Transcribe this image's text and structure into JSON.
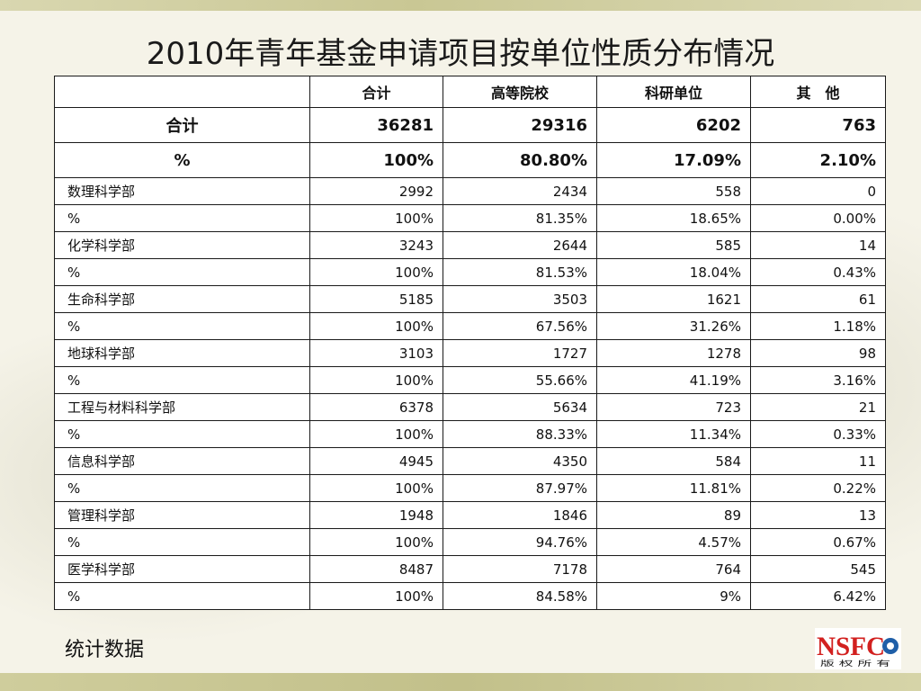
{
  "title": "2010年青年基金申请项目按单位性质分布情况",
  "table": {
    "headers": [
      "",
      "合计",
      "高等院校",
      "科研单位",
      "其　他"
    ],
    "summary_rows": [
      [
        "合计",
        "36281",
        "29316",
        "6202",
        "763"
      ],
      [
        "%",
        "100%",
        "80.80%",
        "17.09%",
        "2.10%"
      ]
    ],
    "rows": [
      [
        "数理科学部",
        "2992",
        "2434",
        "558",
        "0"
      ],
      [
        "%",
        "100%",
        "81.35%",
        "18.65%",
        "0.00%"
      ],
      [
        "化学科学部",
        "3243",
        "2644",
        "585",
        "14"
      ],
      [
        "%",
        "100%",
        "81.53%",
        "18.04%",
        "0.43%"
      ],
      [
        "生命科学部",
        "5185",
        "3503",
        "1621",
        "61"
      ],
      [
        "%",
        "100%",
        "67.56%",
        "31.26%",
        "1.18%"
      ],
      [
        "地球科学部",
        "3103",
        "1727",
        "1278",
        "98"
      ],
      [
        "%",
        "100%",
        "55.66%",
        "41.19%",
        "3.16%"
      ],
      [
        "工程与材料科学部",
        "6378",
        "5634",
        "723",
        "21"
      ],
      [
        "%",
        "100%",
        "88.33%",
        "11.34%",
        "0.33%"
      ],
      [
        "信息科学部",
        "4945",
        "4350",
        "584",
        "11"
      ],
      [
        "%",
        "100%",
        "87.97%",
        "11.81%",
        "0.22%"
      ],
      [
        "管理科学部",
        "1948",
        "1846",
        "89",
        "13"
      ],
      [
        "%",
        "100%",
        "94.76%",
        "4.57%",
        "0.67%"
      ],
      [
        "医学科学部",
        "8487",
        "7178",
        "764",
        "545"
      ],
      [
        "%",
        "100%",
        "84.58%",
        "9%",
        "6.42%"
      ]
    ]
  },
  "footer": "统计数据",
  "logo": {
    "text": "NSFC",
    "subtext": "版 权 所 有",
    "color": "#d2201f"
  }
}
